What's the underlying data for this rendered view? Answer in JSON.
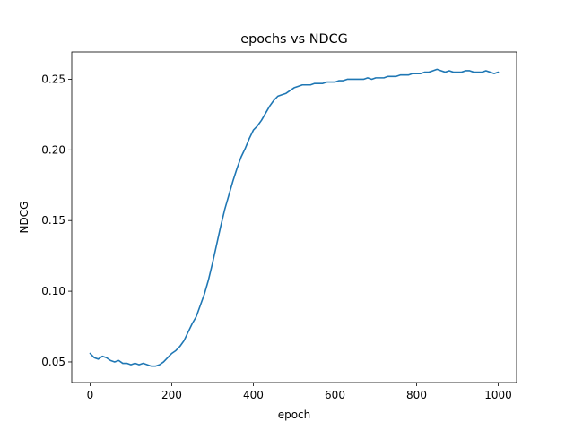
{
  "chart_data": {
    "type": "line",
    "title": "epochs vs NDCG",
    "xlabel": "epoch",
    "ylabel": "NDCG",
    "xlim": [
      -45,
      1045
    ],
    "ylim": [
      0.0354,
      0.2693
    ],
    "xticks": [
      0,
      200,
      400,
      600,
      800,
      1000
    ],
    "xtick_labels": [
      "0",
      "200",
      "400",
      "600",
      "800",
      "1000"
    ],
    "yticks": [
      0.05,
      0.1,
      0.15,
      0.2,
      0.25
    ],
    "ytick_labels": [
      "0.05",
      "0.10",
      "0.15",
      "0.20",
      "0.25"
    ],
    "grid": false,
    "line_color": "#1f77b4",
    "series": [
      {
        "x": [
          0,
          10,
          20,
          30,
          40,
          50,
          60,
          70,
          80,
          90,
          100,
          110,
          120,
          130,
          140,
          150,
          160,
          170,
          180,
          190,
          200,
          210,
          220,
          230,
          240,
          250,
          260,
          270,
          280,
          290,
          300,
          310,
          320,
          330,
          340,
          350,
          360,
          370,
          380,
          390,
          400,
          410,
          420,
          430,
          440,
          450,
          460,
          470,
          480,
          490,
          500,
          510,
          520,
          530,
          540,
          550,
          560,
          570,
          580,
          590,
          600,
          610,
          620,
          630,
          640,
          650,
          660,
          670,
          680,
          690,
          700,
          710,
          720,
          730,
          740,
          750,
          760,
          770,
          780,
          790,
          800,
          810,
          820,
          830,
          840,
          850,
          860,
          870,
          880,
          890,
          900,
          910,
          920,
          930,
          940,
          950,
          960,
          970,
          980,
          990,
          1000
        ],
        "y": [
          0.056,
          0.053,
          0.052,
          0.054,
          0.053,
          0.051,
          0.05,
          0.051,
          0.049,
          0.049,
          0.048,
          0.049,
          0.048,
          0.049,
          0.048,
          0.047,
          0.047,
          0.048,
          0.05,
          0.053,
          0.056,
          0.058,
          0.061,
          0.065,
          0.071,
          0.077,
          0.082,
          0.09,
          0.098,
          0.108,
          0.12,
          0.133,
          0.146,
          0.158,
          0.168,
          0.178,
          0.187,
          0.195,
          0.201,
          0.208,
          0.214,
          0.217,
          0.221,
          0.226,
          0.231,
          0.235,
          0.238,
          0.239,
          0.24,
          0.242,
          0.244,
          0.245,
          0.246,
          0.246,
          0.246,
          0.247,
          0.247,
          0.247,
          0.248,
          0.248,
          0.248,
          0.249,
          0.249,
          0.25,
          0.25,
          0.25,
          0.25,
          0.25,
          0.251,
          0.25,
          0.251,
          0.251,
          0.251,
          0.252,
          0.252,
          0.252,
          0.253,
          0.253,
          0.253,
          0.254,
          0.254,
          0.254,
          0.255,
          0.255,
          0.256,
          0.257,
          0.256,
          0.255,
          0.256,
          0.255,
          0.255,
          0.255,
          0.256,
          0.256,
          0.255,
          0.255,
          0.255,
          0.256,
          0.255,
          0.254,
          0.255
        ]
      }
    ]
  }
}
